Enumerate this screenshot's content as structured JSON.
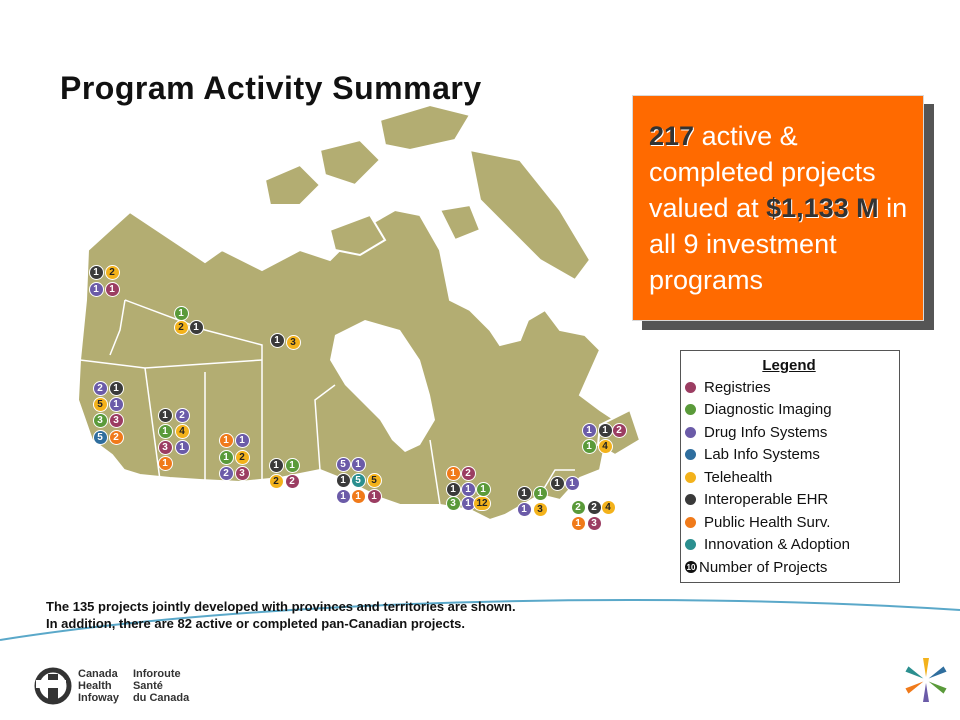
{
  "title": "Program Activity Summary",
  "callout": {
    "count": "217",
    "text1": " active & completed projects valued at ",
    "amount": "$1,133 M",
    "text2": " in all 9 investment programs"
  },
  "legend": {
    "title": "Legend",
    "items": [
      {
        "label": "Registries",
        "color": "#9b3d62"
      },
      {
        "label": "Diagnostic Imaging",
        "color": "#5a9a3a"
      },
      {
        "label": "Drug Info Systems",
        "color": "#6b5ba8"
      },
      {
        "label": "Lab Info Systems",
        "color": "#2f6e9e"
      },
      {
        "label": "Telehealth",
        "color": "#f3b21b"
      },
      {
        "label": "Interoperable EHR",
        "color": "#3a3a3a"
      },
      {
        "label": "Public Health Surv.",
        "color": "#f07a1a"
      },
      {
        "label": "Innovation & Adoption",
        "color": "#2b8f8f"
      }
    ],
    "number_symbol": "10",
    "number_label": "Number of Projects"
  },
  "footnote": {
    "line1": "The 135 projects jointly developed with provinces and territories are shown.",
    "line2": "In addition, there are 82 active or completed pan-Canadian projects."
  },
  "logo": {
    "en1": "Canada",
    "en2": "Health",
    "en3": "Infoway",
    "fr1": "Inforoute",
    "fr2": "Santé",
    "fr3": "du Canada"
  },
  "map_regions": [
    {
      "region": "Yukon",
      "counts": [
        {
          "n": "1",
          "program": "Interoperable EHR"
        },
        {
          "n": "2",
          "program": "Telehealth"
        },
        {
          "n": "1",
          "program": "Drug Info Systems"
        },
        {
          "n": "1",
          "program": "Registries"
        }
      ]
    },
    {
      "region": "Northwest Territories",
      "counts": [
        {
          "n": "1",
          "program": "Diagnostic Imaging"
        },
        {
          "n": "2",
          "program": "Telehealth"
        },
        {
          "n": "1",
          "program": "Interoperable EHR"
        }
      ]
    },
    {
      "region": "Nunavut",
      "counts": [
        {
          "n": "1",
          "program": "Interoperable EHR"
        },
        {
          "n": "3",
          "program": "Telehealth"
        }
      ]
    },
    {
      "region": "British Columbia",
      "counts": [
        {
          "n": "2",
          "program": "Drug Info Systems"
        },
        {
          "n": "1",
          "program": "Interoperable EHR"
        },
        {
          "n": "5",
          "program": "Telehealth"
        },
        {
          "n": "1",
          "program": "Drug Info Systems"
        },
        {
          "n": "3",
          "program": "Diagnostic Imaging"
        },
        {
          "n": "3",
          "program": "Registries"
        },
        {
          "n": "5",
          "program": "Lab Info Systems"
        },
        {
          "n": "2",
          "program": "Public Health Surv."
        }
      ]
    },
    {
      "region": "Alberta",
      "counts": [
        {
          "n": "1",
          "program": "Interoperable EHR"
        },
        {
          "n": "2",
          "program": "Drug Info Systems"
        },
        {
          "n": "1",
          "program": "Diagnostic Imaging"
        },
        {
          "n": "4",
          "program": "Telehealth"
        },
        {
          "n": "3",
          "program": "Registries"
        },
        {
          "n": "1",
          "program": "Drug Info Systems"
        },
        {
          "n": "1",
          "program": "Public Health Surv."
        }
      ]
    },
    {
      "region": "Saskatchewan",
      "counts": [
        {
          "n": "1",
          "program": "Public Health Surv."
        },
        {
          "n": "1",
          "program": "Drug Info Systems"
        },
        {
          "n": "1",
          "program": "Diagnostic Imaging"
        },
        {
          "n": "2",
          "program": "Telehealth"
        },
        {
          "n": "2",
          "program": "Drug Info Systems"
        },
        {
          "n": "3",
          "program": "Registries"
        }
      ]
    },
    {
      "region": "Manitoba",
      "counts": [
        {
          "n": "1",
          "program": "Interoperable EHR"
        },
        {
          "n": "1",
          "program": "Diagnostic Imaging"
        },
        {
          "n": "2",
          "program": "Telehealth"
        },
        {
          "n": "2",
          "program": "Registries"
        }
      ]
    },
    {
      "region": "Ontario",
      "counts": [
        {
          "n": "5",
          "program": "Drug Info Systems"
        },
        {
          "n": "1",
          "program": "Drug Info Systems"
        },
        {
          "n": "1",
          "program": "Interoperable EHR"
        },
        {
          "n": "5",
          "program": "Innovation & Adoption"
        },
        {
          "n": "5",
          "program": "Telehealth"
        },
        {
          "n": "1",
          "program": "Drug Info Systems"
        },
        {
          "n": "1",
          "program": "Public Health Surv."
        },
        {
          "n": "1",
          "program": "Registries"
        }
      ]
    },
    {
      "region": "Quebec",
      "counts": [
        {
          "n": "1",
          "program": "Public Health Surv."
        },
        {
          "n": "2",
          "program": "Registries"
        },
        {
          "n": "1",
          "program": "Interoperable EHR"
        },
        {
          "n": "1",
          "program": "Drug Info Systems"
        },
        {
          "n": "1",
          "program": "Diagnostic Imaging"
        },
        {
          "n": "3",
          "program": "Diagnostic Imaging"
        },
        {
          "n": "1",
          "program": "Drug Info Systems"
        },
        {
          "n": "12",
          "program": "Telehealth"
        }
      ]
    },
    {
      "region": "New Brunswick",
      "counts": [
        {
          "n": "1",
          "program": "Interoperable EHR"
        },
        {
          "n": "1",
          "program": "Diagnostic Imaging"
        },
        {
          "n": "1",
          "program": "Drug Info Systems"
        },
        {
          "n": "3",
          "program": "Telehealth"
        }
      ]
    },
    {
      "region": "Prince Edward Island",
      "counts": [
        {
          "n": "1",
          "program": "Interoperable EHR"
        },
        {
          "n": "1",
          "program": "Drug Info Systems"
        }
      ]
    },
    {
      "region": "Nova Scotia",
      "counts": [
        {
          "n": "2",
          "program": "Diagnostic Imaging"
        },
        {
          "n": "2",
          "program": "Interoperable EHR"
        },
        {
          "n": "4",
          "program": "Telehealth"
        },
        {
          "n": "1",
          "program": "Public Health Surv."
        },
        {
          "n": "3",
          "program": "Registries"
        }
      ]
    },
    {
      "region": "Newfoundland and Labrador",
      "counts": [
        {
          "n": "1",
          "program": "Drug Info Systems"
        },
        {
          "n": "1",
          "program": "Interoperable EHR"
        },
        {
          "n": "2",
          "program": "Registries"
        },
        {
          "n": "1",
          "program": "Diagnostic Imaging"
        },
        {
          "n": "4",
          "program": "Telehealth"
        }
      ]
    }
  ]
}
